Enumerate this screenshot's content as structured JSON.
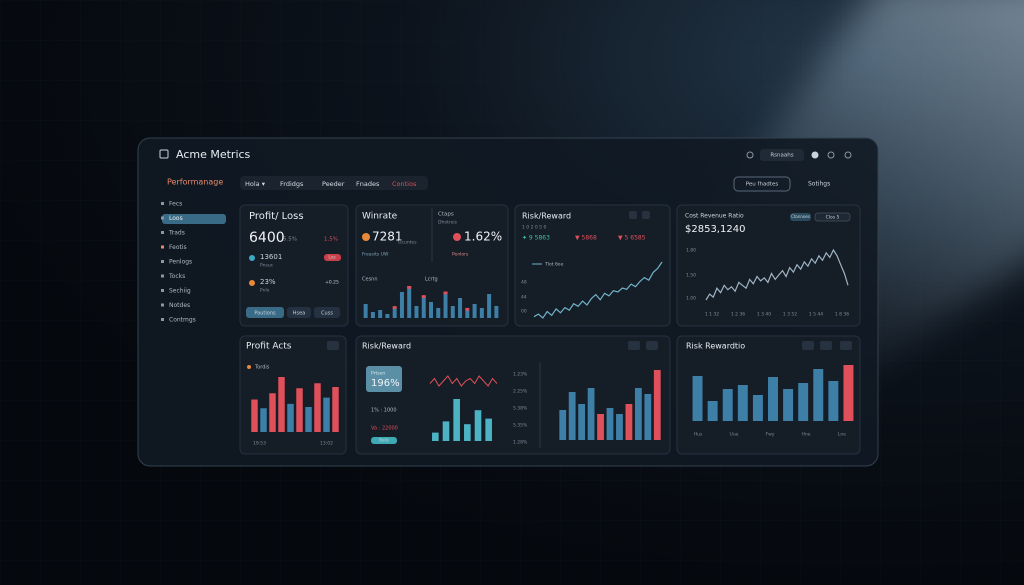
{
  "header": {
    "title": "Acme Metrics",
    "button": "Rsnaahs",
    "section": "Performanage",
    "tabs": [
      "Hola ▾",
      "Frdidgs",
      "Peeder",
      "Fnades",
      "Contios"
    ],
    "action": "Peu fhadtes",
    "settings": "Sotihgs"
  },
  "sidebar": [
    "Fecs",
    "Loos",
    "Trads",
    "Feotis",
    "Penlogs",
    "Tocks",
    "Sechiig",
    "Notdes",
    "Contmgs"
  ],
  "cards": [
    {
      "title": "Profit/ Loss",
      "value": "6400",
      "sub": "5.5%",
      "delta": "1.5%",
      "rows": [
        {
          "label": "13601",
          "sub": "Pnsuc",
          "tag": "Lss"
        },
        {
          "label": "23%",
          "sub": "Pnlo",
          "tag": "+0.25"
        }
      ],
      "buttons": [
        "Pautions",
        "Hsea",
        "Cuss"
      ]
    },
    {
      "title": "Winrate",
      "value": "7281",
      "sub": "Gcuntes",
      "title2": "Ctaps",
      "sub2": "Dhotreis",
      "value2": "1.62%",
      "rows": [
        "Freasits UW",
        "Penlors"
      ],
      "chart_labels": [
        "Cesnn",
        "Lcrtg"
      ],
      "series": [
        {
          "color": "#3d7fa6",
          "values": [
            14,
            6,
            8,
            4,
            10,
            26,
            32,
            12,
            22,
            16,
            10,
            26,
            12,
            20,
            8,
            14,
            10,
            24,
            12
          ]
        },
        {
          "color": "#e0505a",
          "values": [
            null,
            null,
            null,
            null,
            3,
            null,
            3,
            null,
            3,
            null,
            null,
            3,
            null,
            null,
            3,
            null,
            null,
            null,
            null
          ]
        }
      ]
    },
    {
      "title": "Risk/Reward",
      "sub": "1 0 2 0 5 0",
      "stats": [
        "✦ 9 5863",
        "▼ 5868",
        "▼ 5 6585"
      ],
      "stat_colors": [
        "#3fc1a5",
        "#e0505a",
        "#e0505a"
      ],
      "axis_labels": [
        "48",
        "44",
        "00"
      ],
      "legend": "Tlot 6oe",
      "line": {
        "color": "#6fb3c9",
        "values": [
          8,
          10,
          7,
          12,
          9,
          14,
          11,
          15,
          13,
          18,
          16,
          20,
          17,
          22,
          25,
          21,
          26,
          24,
          28,
          27,
          30,
          29,
          33,
          31,
          35,
          38,
          36,
          42,
          45,
          50
        ]
      }
    },
    {
      "title": "Cost Revenue Ratio",
      "tag": "Ctonnoes",
      "button": "Clos 5",
      "value": "$2853,1240",
      "axis_labels": [
        "1.80",
        "1.50",
        "1.00"
      ],
      "x_labels": [
        "1 1 32",
        "1 2 36",
        "1 3 40",
        "1 3 52",
        "1 5 44",
        "1 8 36"
      ],
      "line": {
        "color": "#9fb4c4",
        "values": [
          10,
          14,
          12,
          18,
          15,
          20,
          17,
          19,
          16,
          22,
          20,
          18,
          24,
          21,
          26,
          23,
          25,
          22,
          28,
          24,
          27,
          30,
          26,
          32,
          29,
          34,
          31,
          36,
          33,
          38,
          35,
          40,
          37,
          42,
          39,
          44,
          40,
          34,
          28,
          20
        ]
      }
    },
    {
      "title": "Profit Acts",
      "legend": "Tordis",
      "x_labels": [
        "19:53",
        "13:02"
      ],
      "bars": {
        "values": [
          52,
          38,
          62,
          88,
          45,
          70,
          40,
          78,
          55,
          72
        ],
        "colors": [
          "#e0505a",
          "#3d7fa6",
          "#e0505a",
          "#e0505a",
          "#3d7fa6",
          "#e0505a",
          "#3d7fa6",
          "#e0505a",
          "#3d7fa6",
          "#e0505a"
        ]
      }
    },
    {
      "title": "Risk/Reward",
      "badge_label": "Prtsen",
      "badge_value": "196%",
      "rows": [
        "1% : 1000",
        "Va : 22000"
      ],
      "button": "Bells",
      "wave": {
        "color": "#e0505a",
        "values": [
          4,
          6,
          3,
          5,
          7,
          4,
          6,
          3,
          5,
          6,
          4,
          7,
          5,
          3,
          6,
          4
        ]
      },
      "left_bars": {
        "color": "#4bb3c4",
        "values": [
          6,
          14,
          30,
          12,
          22,
          16
        ]
      },
      "axis_labels": [
        "1.23%",
        "2.25%",
        "5.38%",
        "5.35%",
        "1.28%"
      ],
      "right_bars": {
        "values": [
          30,
          48,
          36,
          52,
          26,
          32,
          26,
          36,
          52,
          46,
          70
        ],
        "colors": [
          "#3d7fa6",
          "#3d7fa6",
          "#3d7fa6",
          "#3d7fa6",
          "#e0505a",
          "#3d7fa6",
          "#3d7fa6",
          "#e0505a",
          "#3d7fa6",
          "#3d7fa6",
          "#e0505a"
        ]
      }
    },
    {
      "title": "Risk Rewardtio",
      "x_labels": [
        "Hus",
        "Uue",
        "Fwy",
        "Hne",
        "Lne"
      ],
      "bars": {
        "values": [
          45,
          20,
          32,
          36,
          26,
          44,
          32,
          38,
          52,
          40,
          56
        ],
        "colors": [
          "#3d7fa6",
          "#3d7fa6",
          "#3d7fa6",
          "#3d7fa6",
          "#3d7fa6",
          "#3d7fa6",
          "#3d7fa6",
          "#3d7fa6",
          "#3d7fa6",
          "#3d7fa6",
          "#e0505a"
        ]
      }
    }
  ]
}
